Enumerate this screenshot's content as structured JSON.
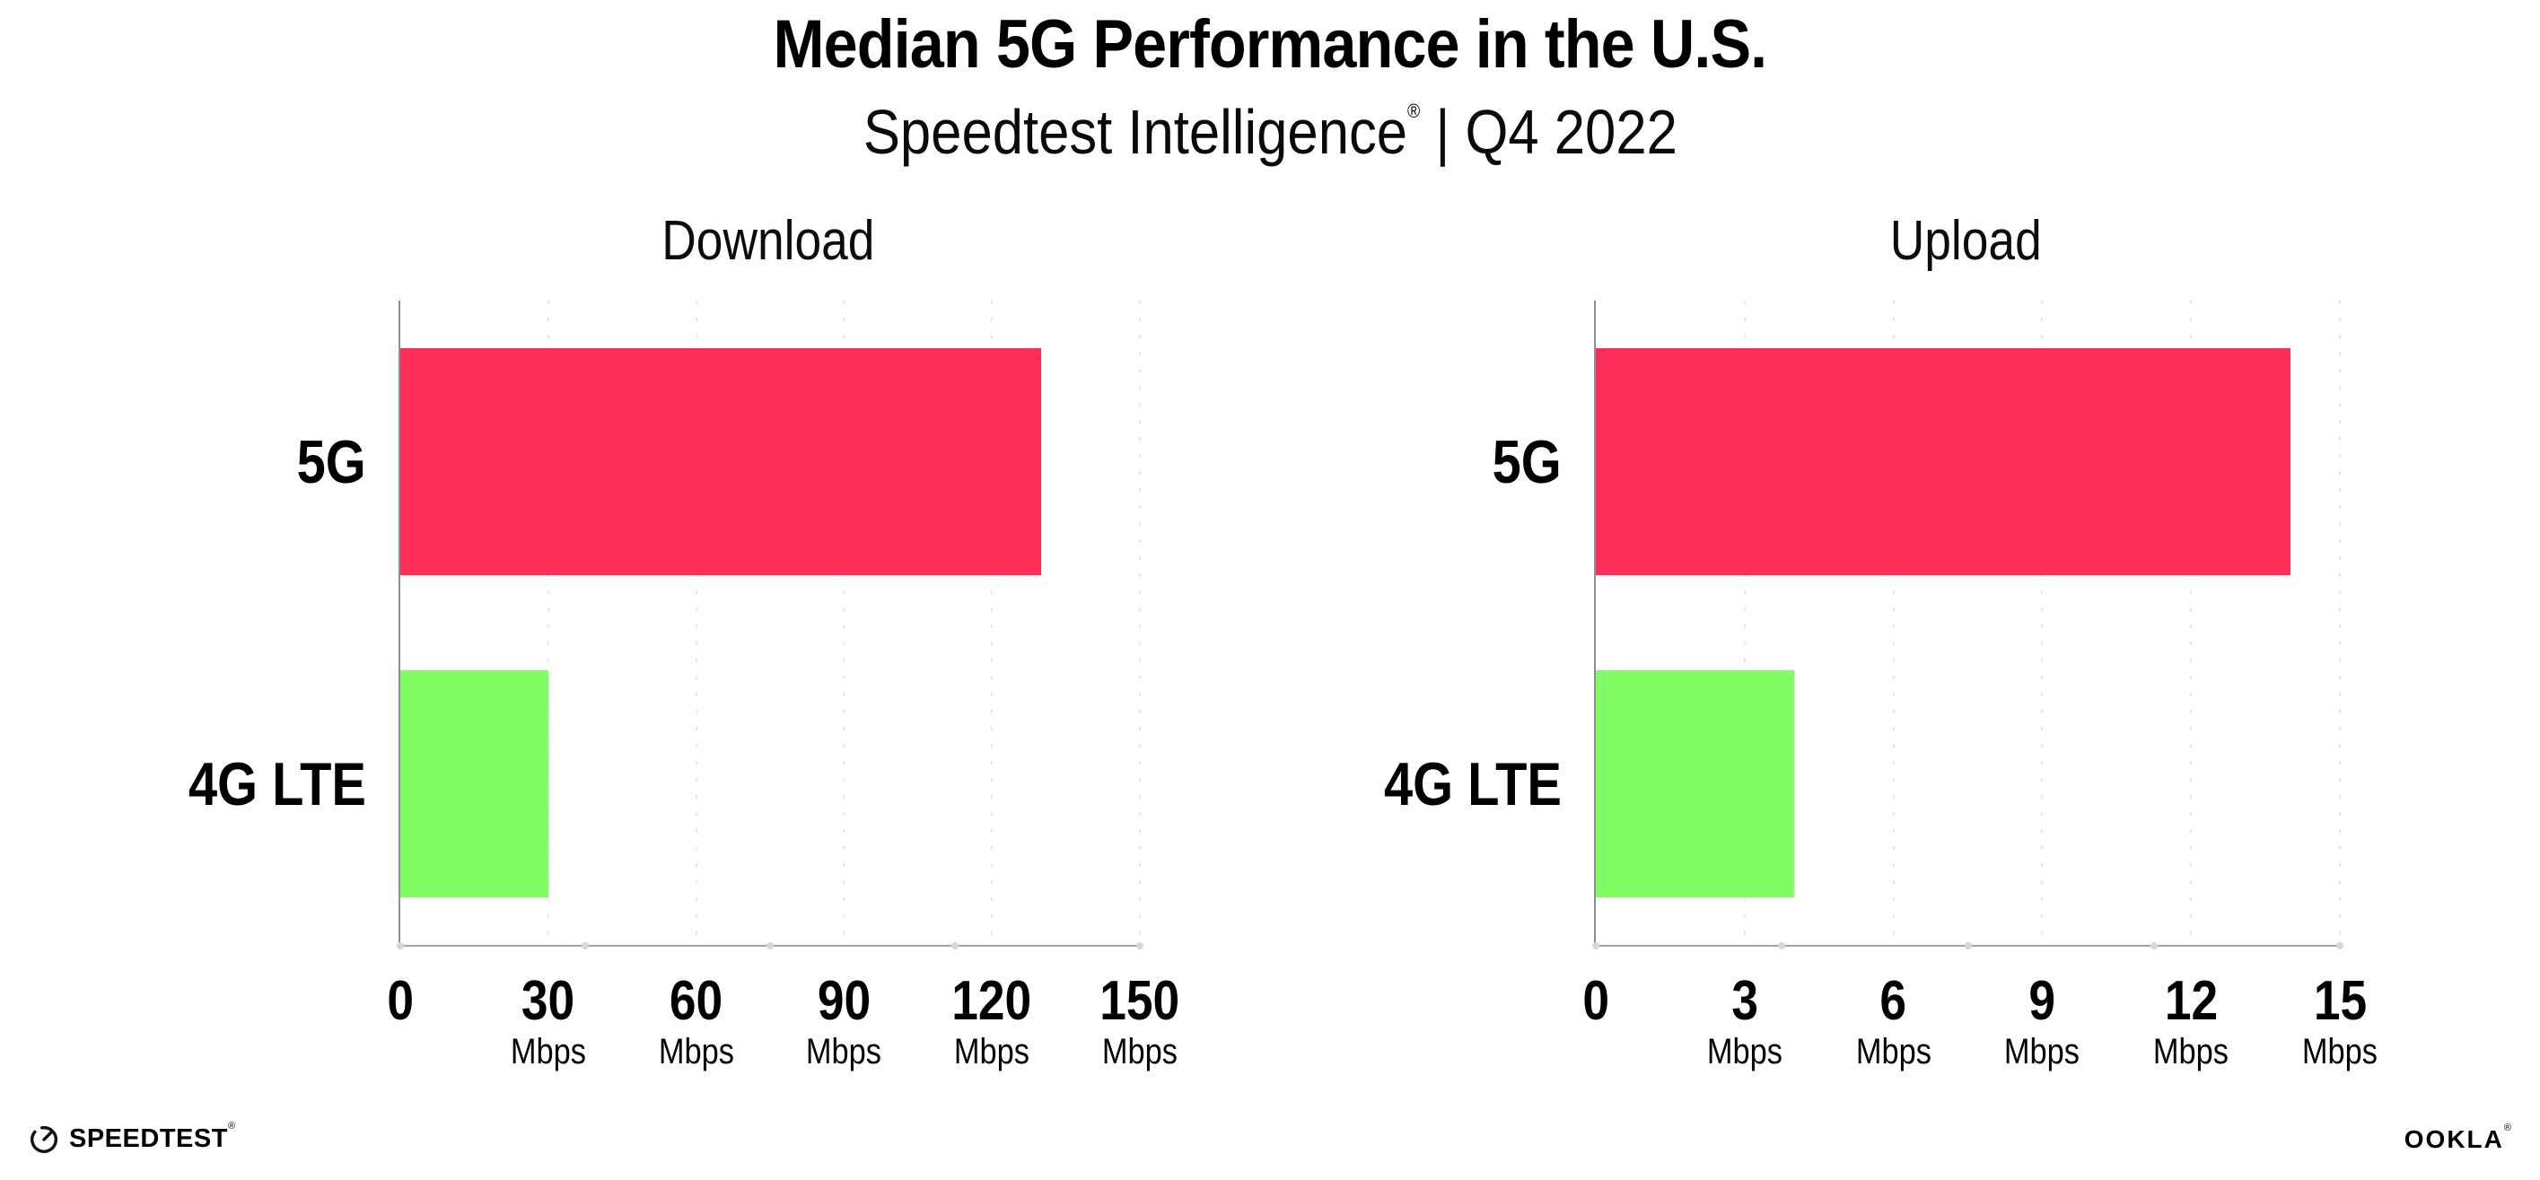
{
  "header": {
    "title": "Median 5G Performance in the U.S.",
    "subtitle_prefix": "Speedtest Intelligence",
    "subtitle_mark": "®",
    "subtitle_suffix": " | Q4 2022"
  },
  "footer": {
    "speedtest_logo_text": "SPEEDTEST",
    "speedtest_logo_mark": "®",
    "ookla_logo_text": "OOKLA",
    "ookla_logo_mark": "®"
  },
  "colors": {
    "bar_5g": "#fd2e57",
    "bar_4g_lte": "#80fc64",
    "gridline": "#e5e5ee",
    "x_axis": "#a3a3ab",
    "y_axis": "#8e8e96",
    "axis_dot": "#d6d6e0",
    "text": "#000000"
  },
  "chart_data": [
    {
      "type": "bar",
      "orientation": "horizontal",
      "title": "Download",
      "categories": [
        "5G",
        "4G LTE"
      ],
      "values": [
        130,
        30
      ],
      "unit": "Mbps",
      "xlabel": "",
      "ylabel": "",
      "xlim": [
        0,
        150
      ],
      "xticks": [
        0,
        30,
        60,
        90,
        120,
        150
      ],
      "grid": "vertical-dotted",
      "legend": "none",
      "bar_colors": [
        "#fd2e57",
        "#80fc64"
      ]
    },
    {
      "type": "bar",
      "orientation": "horizontal",
      "title": "Upload",
      "categories": [
        "5G",
        "4G LTE"
      ],
      "values": [
        14,
        4
      ],
      "unit": "Mbps",
      "xlabel": "",
      "ylabel": "",
      "xlim": [
        0,
        15
      ],
      "xticks": [
        0,
        3,
        6,
        9,
        12,
        15
      ],
      "grid": "vertical-dotted",
      "legend": "none",
      "bar_colors": [
        "#fd2e57",
        "#80fc64"
      ]
    }
  ]
}
